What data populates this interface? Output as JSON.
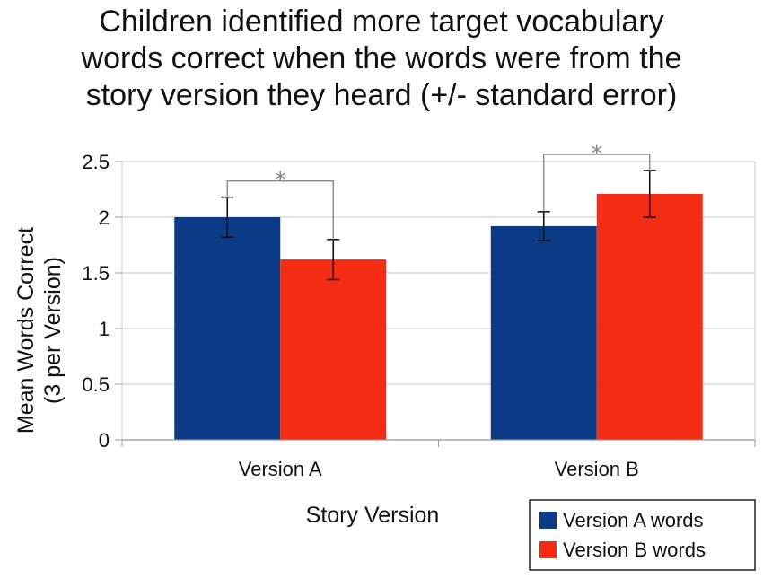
{
  "chart_data": {
    "type": "bar",
    "title_lines": [
      "Children identified more target vocabulary",
      "words correct when the words were from the",
      "story version they heard (+/- standard error)"
    ],
    "xlabel": "Story Version",
    "ylabel_lines": [
      "Mean Words Correct",
      "(3 per Version)"
    ],
    "categories": [
      "Version A",
      "Version B"
    ],
    "series": [
      {
        "name": "Version A words",
        "color": "#0b3a86",
        "values": [
          2.0,
          1.92
        ],
        "errors": [
          0.18,
          0.13
        ]
      },
      {
        "name": "Version B words",
        "color": "#f52c14",
        "values": [
          1.62,
          2.21
        ],
        "errors": [
          0.18,
          0.21
        ]
      }
    ],
    "ylim": [
      0,
      2.5
    ],
    "yticks": [
      "0",
      "0.5",
      "1",
      "1.5",
      "2",
      "2.5"
    ],
    "grid": true,
    "legend_position": "bottom-right",
    "annotations": [
      {
        "text": "*",
        "category": "Version A",
        "color": "#888888"
      },
      {
        "text": "*",
        "category": "Version B",
        "color": "#888888"
      }
    ]
  }
}
